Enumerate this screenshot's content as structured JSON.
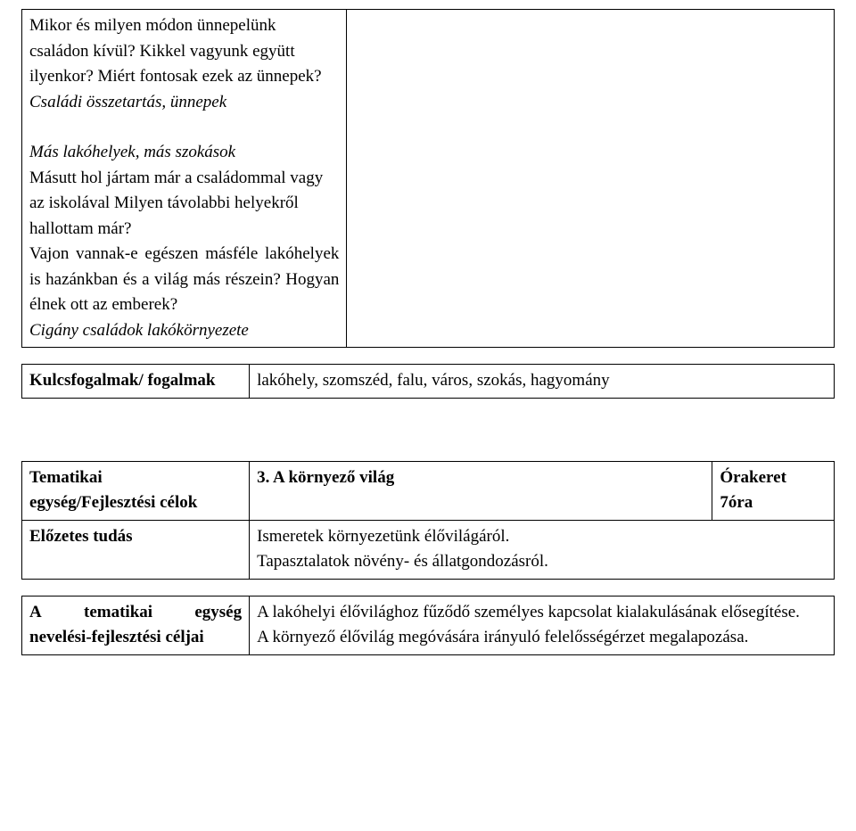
{
  "block1": {
    "p1": "Mikor és milyen módon ünnepelünk családon kívül? Kikkel vagyunk együtt ilyenkor? Miért fontosak ezek az ünnepek?",
    "p2": "Családi összetartás, ünnepek",
    "p3": "Más lakóhelyek, más szokások",
    "p4": "Másutt hol jártam már a családommal vagy az iskolával Milyen távolabbi helyekről hallottam már?",
    "p5": "Vajon vannak-e egészen másféle lakóhelyek is hazánkban és a világ más részein? Hogyan élnek ott az emberek?",
    "p6": "Cigány családok lakókörnyezete"
  },
  "kulcs": {
    "label": "Kulcsfogalmak/ fogalmak",
    "value": "lakóhely, szomszéd, falu, város, szokás, hagyomány"
  },
  "tematikai": {
    "row1_left_line1": "Tematikai",
    "row1_left_line2": "egység/Fejlesztési célok",
    "row1_mid": "3. A környező világ",
    "row1_right_line1": "Órakeret",
    "row1_right_line2": "7óra",
    "row2_left": "Előzetes tudás",
    "row2_right_line1": "Ismeretek környezetünk élővilágáról.",
    "row2_right_line2": "Tapasztalatok növény- és állatgondozásról."
  },
  "nevelesi": {
    "left_word1": "A",
    "left_word2": "tematikai",
    "left_word3": "egység",
    "left_line2": "nevelési-fejlesztési céljai",
    "right_line1": "A lakóhelyi élővilághoz fűződő személyes kapcsolat kialakulásának elősegítése.",
    "right_line2": "A környező élővilág megóvására irányuló felelősségérzet megalapozása."
  }
}
